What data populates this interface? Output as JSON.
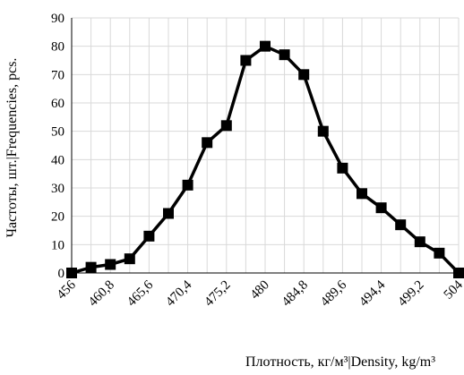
{
  "chart_data": {
    "type": "line",
    "x_label": "Плотность, кг/м³|Density, kg/m³",
    "y_label": "Частоты, шт.|Frequencies, pcs.",
    "categories": [
      "456",
      null,
      "460,8",
      null,
      "465,6",
      null,
      "470,4",
      null,
      "475,2",
      null,
      "480",
      null,
      "484,8",
      null,
      "489,6",
      null,
      "494,4",
      null,
      "499,2",
      null,
      "504"
    ],
    "values": [
      0,
      2,
      3,
      5,
      13,
      21,
      31,
      46,
      52,
      75,
      80,
      77,
      70,
      50,
      37,
      28,
      23,
      17,
      11,
      7,
      0
    ],
    "color": "#000000",
    "ylim": [
      0,
      90
    ],
    "yticks": [
      0,
      10,
      20,
      30,
      40,
      50,
      60,
      70,
      80,
      90
    ],
    "grid": true
  }
}
